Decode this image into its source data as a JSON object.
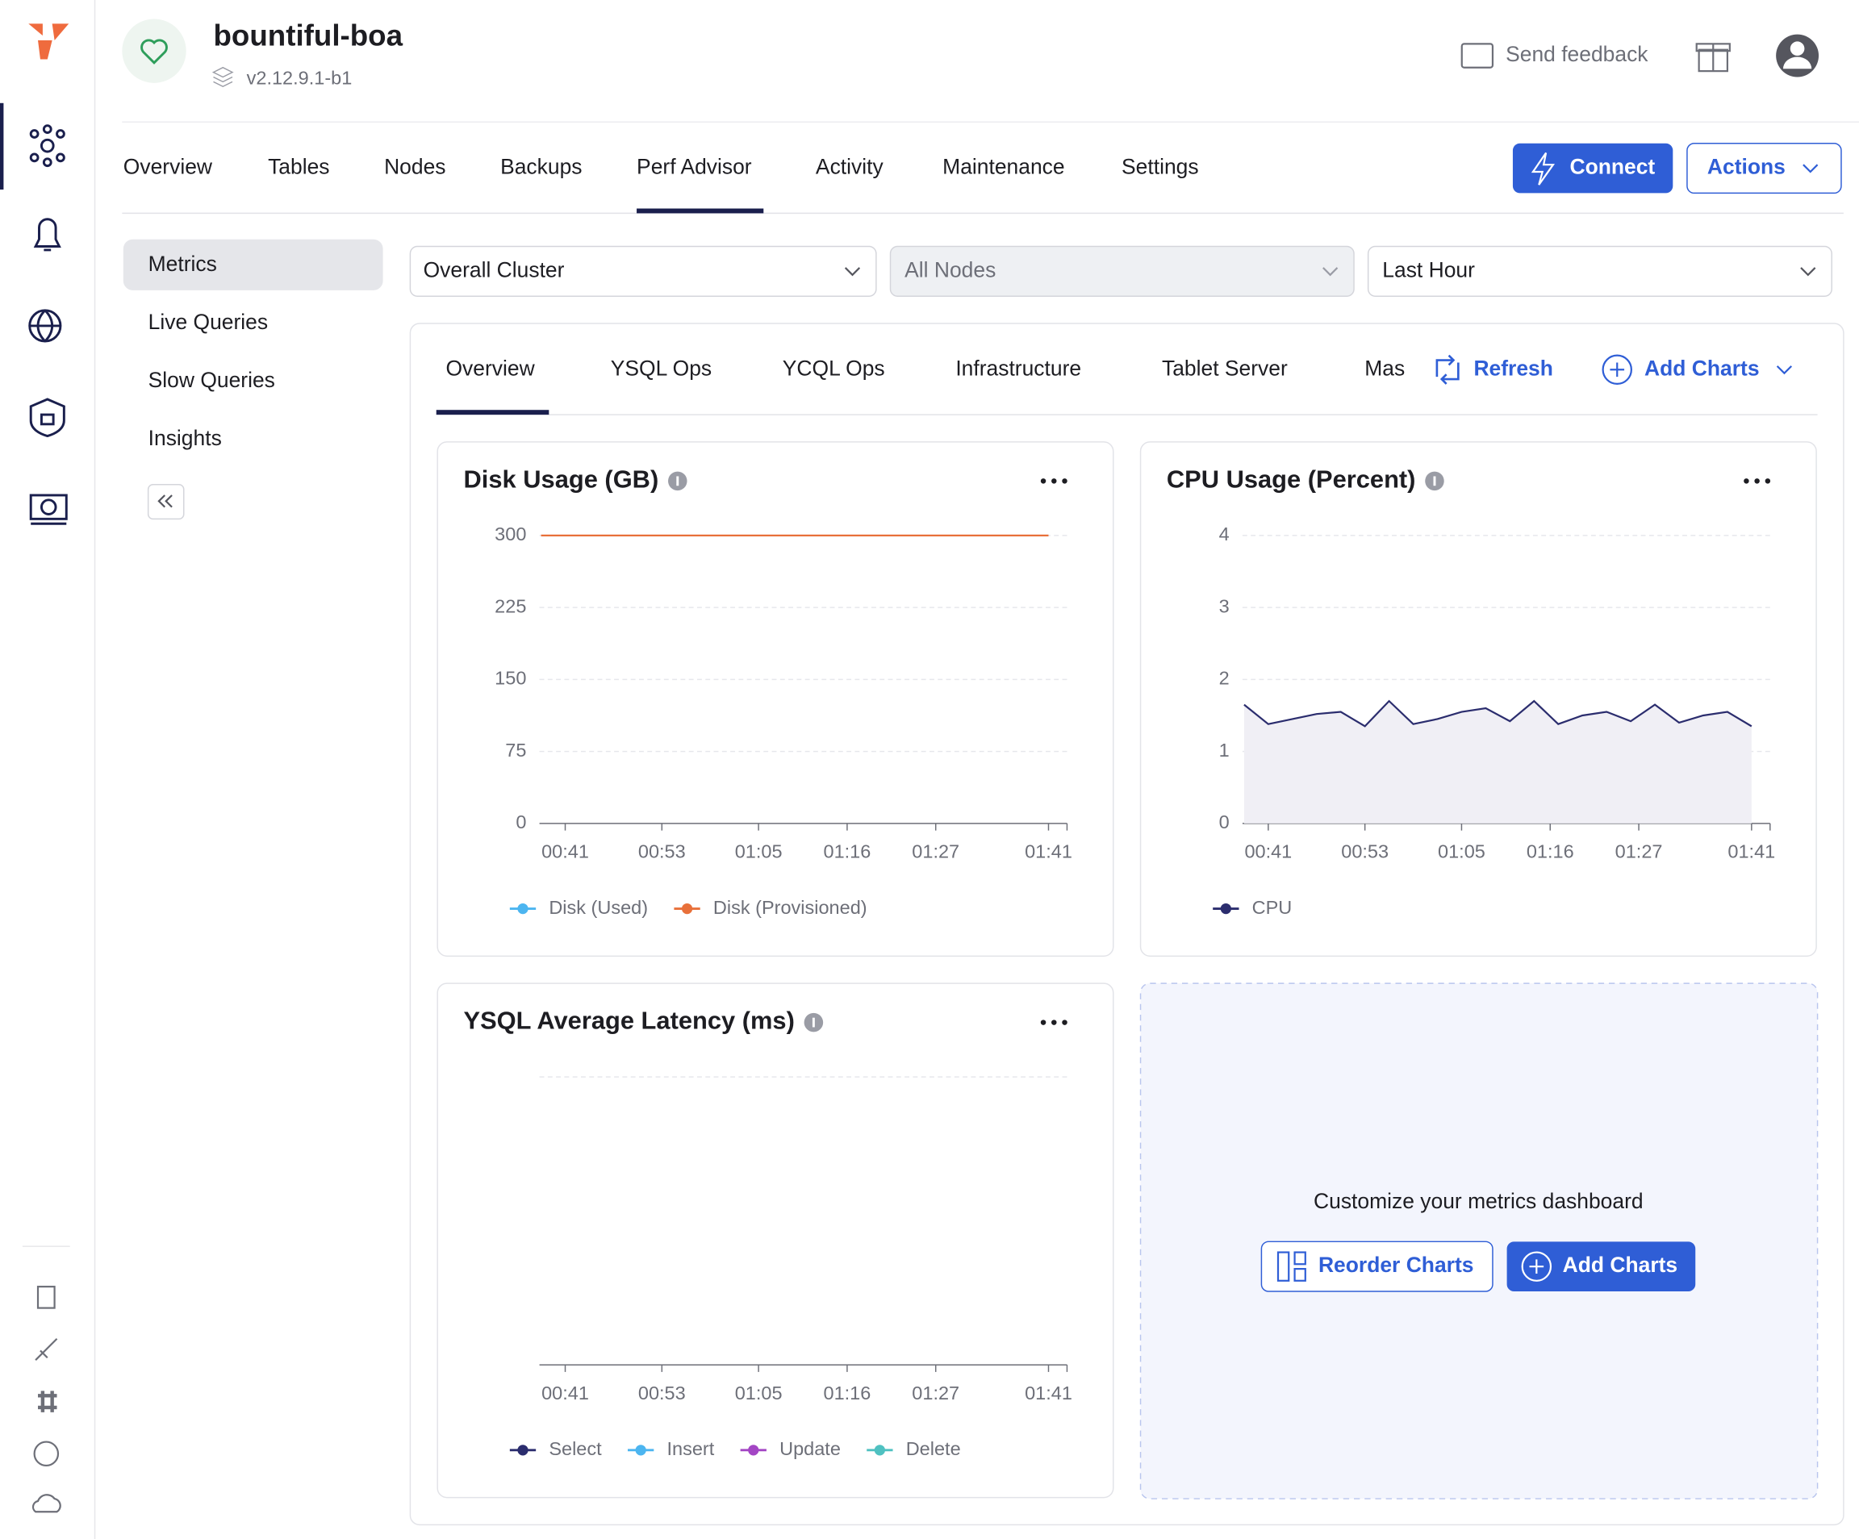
{
  "header": {
    "cluster_name": "bountiful-boa",
    "version": "v2.12.9.1-b1",
    "send_feedback": "Send feedback"
  },
  "tabs": [
    "Overview",
    "Tables",
    "Nodes",
    "Backups",
    "Perf Advisor",
    "Activity",
    "Maintenance",
    "Settings"
  ],
  "buttons": {
    "connect": "Connect",
    "actions": "Actions"
  },
  "sidebar": [
    "Metrics",
    "Live Queries",
    "Slow Queries",
    "Insights"
  ],
  "filters": [
    "Overall Cluster",
    "All Nodes",
    "Last Hour"
  ],
  "metric_tabs": [
    "Overview",
    "YSQL Ops",
    "YCQL Ops",
    "Infrastructure",
    "Tablet Server",
    "Mas"
  ],
  "toolbar": {
    "refresh": "Refresh",
    "add_charts": "Add Charts"
  },
  "chart_data": [
    {
      "type": "line",
      "title": "Disk Usage (GB)",
      "x": [
        38,
        41,
        44,
        47,
        50,
        53,
        56,
        59,
        62,
        65,
        68,
        71,
        74,
        77,
        80,
        83,
        86,
        89,
        92,
        95,
        98,
        101
      ],
      "xlim": [
        37.8,
        103.3
      ],
      "xticks": [
        {
          "value": 41,
          "label": "00:41"
        },
        {
          "value": 53,
          "label": "00:53"
        },
        {
          "value": 65,
          "label": "01:05"
        },
        {
          "value": 76,
          "label": "01:16"
        },
        {
          "value": 87,
          "label": "01:27"
        },
        {
          "value": 101,
          "label": "01:41"
        }
      ],
      "ylim": [
        0,
        300
      ],
      "yticks": [
        0,
        75,
        150,
        225,
        300
      ],
      "grid": true,
      "series": [
        {
          "name": "Disk (Used)",
          "color": "#4cb5f0",
          "values": [
            null,
            null,
            null,
            null,
            null,
            null,
            null,
            null,
            null,
            null,
            null,
            null,
            null,
            null,
            null,
            null,
            null,
            null,
            null,
            null,
            null,
            null
          ]
        },
        {
          "name": "Disk (Provisioned)",
          "color": "#e8703a",
          "values": [
            300,
            300,
            300,
            300,
            300,
            300,
            300,
            300,
            300,
            300,
            300,
            300,
            300,
            300,
            300,
            300,
            300,
            300,
            300,
            300,
            300,
            300
          ]
        }
      ]
    },
    {
      "type": "area",
      "title": "CPU Usage (Percent)",
      "x": [
        38,
        41,
        44,
        47,
        50,
        53,
        56,
        59,
        62,
        65,
        68,
        71,
        74,
        77,
        80,
        83,
        86,
        89,
        92,
        95,
        98,
        101
      ],
      "xlim": [
        37.8,
        103.3
      ],
      "xticks": [
        {
          "value": 41,
          "label": "00:41"
        },
        {
          "value": 53,
          "label": "00:53"
        },
        {
          "value": 65,
          "label": "01:05"
        },
        {
          "value": 76,
          "label": "01:16"
        },
        {
          "value": 87,
          "label": "01:27"
        },
        {
          "value": 101,
          "label": "01:41"
        }
      ],
      "ylim": [
        0,
        4
      ],
      "yticks": [
        0,
        1,
        2,
        3,
        4
      ],
      "grid": true,
      "series": [
        {
          "name": "CPU",
          "color": "#2b2d6e",
          "values": [
            1.65,
            1.38,
            1.45,
            1.52,
            1.55,
            1.35,
            1.7,
            1.38,
            1.45,
            1.55,
            1.6,
            1.42,
            1.7,
            1.38,
            1.5,
            1.55,
            1.42,
            1.65,
            1.4,
            1.5,
            1.55,
            1.35
          ]
        }
      ]
    },
    {
      "type": "line",
      "title": "YSQL Average Latency (ms)",
      "x": [
        38,
        41,
        44,
        47,
        50,
        53,
        56,
        59,
        62,
        65,
        68,
        71,
        74,
        77,
        80,
        83,
        86,
        89,
        92,
        95,
        98,
        101
      ],
      "xlim": [
        37.8,
        103.3
      ],
      "xticks": [
        {
          "value": 41,
          "label": "00:41"
        },
        {
          "value": 53,
          "label": "00:53"
        },
        {
          "value": 65,
          "label": "01:05"
        },
        {
          "value": 76,
          "label": "01:16"
        },
        {
          "value": 87,
          "label": "01:27"
        },
        {
          "value": 101,
          "label": "01:41"
        }
      ],
      "series": [
        {
          "name": "Select",
          "color": "#2b2d6e",
          "values": [
            null,
            null,
            null,
            null,
            null,
            null,
            null,
            null,
            null,
            null,
            null,
            null,
            null,
            null,
            null,
            null,
            null,
            null,
            null,
            null,
            null,
            null
          ]
        },
        {
          "name": "Insert",
          "color": "#4cb5f0",
          "values": [
            null,
            null,
            null,
            null,
            null,
            null,
            null,
            null,
            null,
            null,
            null,
            null,
            null,
            null,
            null,
            null,
            null,
            null,
            null,
            null,
            null,
            null
          ]
        },
        {
          "name": "Update",
          "color": "#a346c4",
          "values": [
            null,
            null,
            null,
            null,
            null,
            null,
            null,
            null,
            null,
            null,
            null,
            null,
            null,
            null,
            null,
            null,
            null,
            null,
            null,
            null,
            null,
            null
          ]
        },
        {
          "name": "Delete",
          "color": "#4fc1c1",
          "values": [
            null,
            null,
            null,
            null,
            null,
            null,
            null,
            null,
            null,
            null,
            null,
            null,
            null,
            null,
            null,
            null,
            null,
            null,
            null,
            null,
            null,
            null
          ]
        }
      ]
    }
  ],
  "customize": {
    "text": "Customize your metrics dashboard",
    "reorder": "Reorder Charts",
    "add_charts": "Add Charts"
  }
}
